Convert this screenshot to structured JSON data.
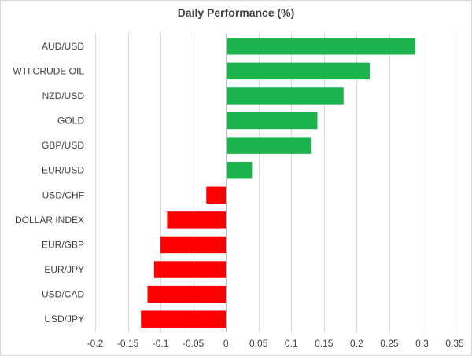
{
  "chart_data": {
    "type": "bar",
    "orientation": "horizontal",
    "title": "Daily Performance (%)",
    "xlabel": "",
    "ylabel": "",
    "categories": [
      "AUD/USD",
      "WTI CRUDE OIL",
      "NZD/USD",
      "GOLD",
      "GBP/USD",
      "EUR/USD",
      "USD/CHF",
      "DOLLAR INDEX",
      "EUR/GBP",
      "EUR/JPY",
      "USD/CAD",
      "USD/JPY"
    ],
    "values": [
      0.29,
      0.22,
      0.18,
      0.14,
      0.13,
      0.04,
      -0.03,
      -0.09,
      -0.1,
      -0.11,
      -0.12,
      -0.13
    ],
    "xlim": [
      -0.2,
      0.35
    ],
    "xticks": [
      -0.2,
      -0.15,
      -0.1,
      -0.05,
      0,
      0.05,
      0.1,
      0.15,
      0.2,
      0.25,
      0.3,
      0.35
    ],
    "xtick_labels": [
      "-0.2",
      "-0.15",
      "-0.1",
      "-0.05",
      "0",
      "0.05",
      "0.1",
      "0.15",
      "0.2",
      "0.25",
      "0.3",
      "0.35"
    ],
    "grid": true,
    "colors": {
      "positive": "#1db34f",
      "negative": "#ff0000",
      "grid": "#d9d9d9",
      "axis": "#bfbfbf"
    }
  }
}
